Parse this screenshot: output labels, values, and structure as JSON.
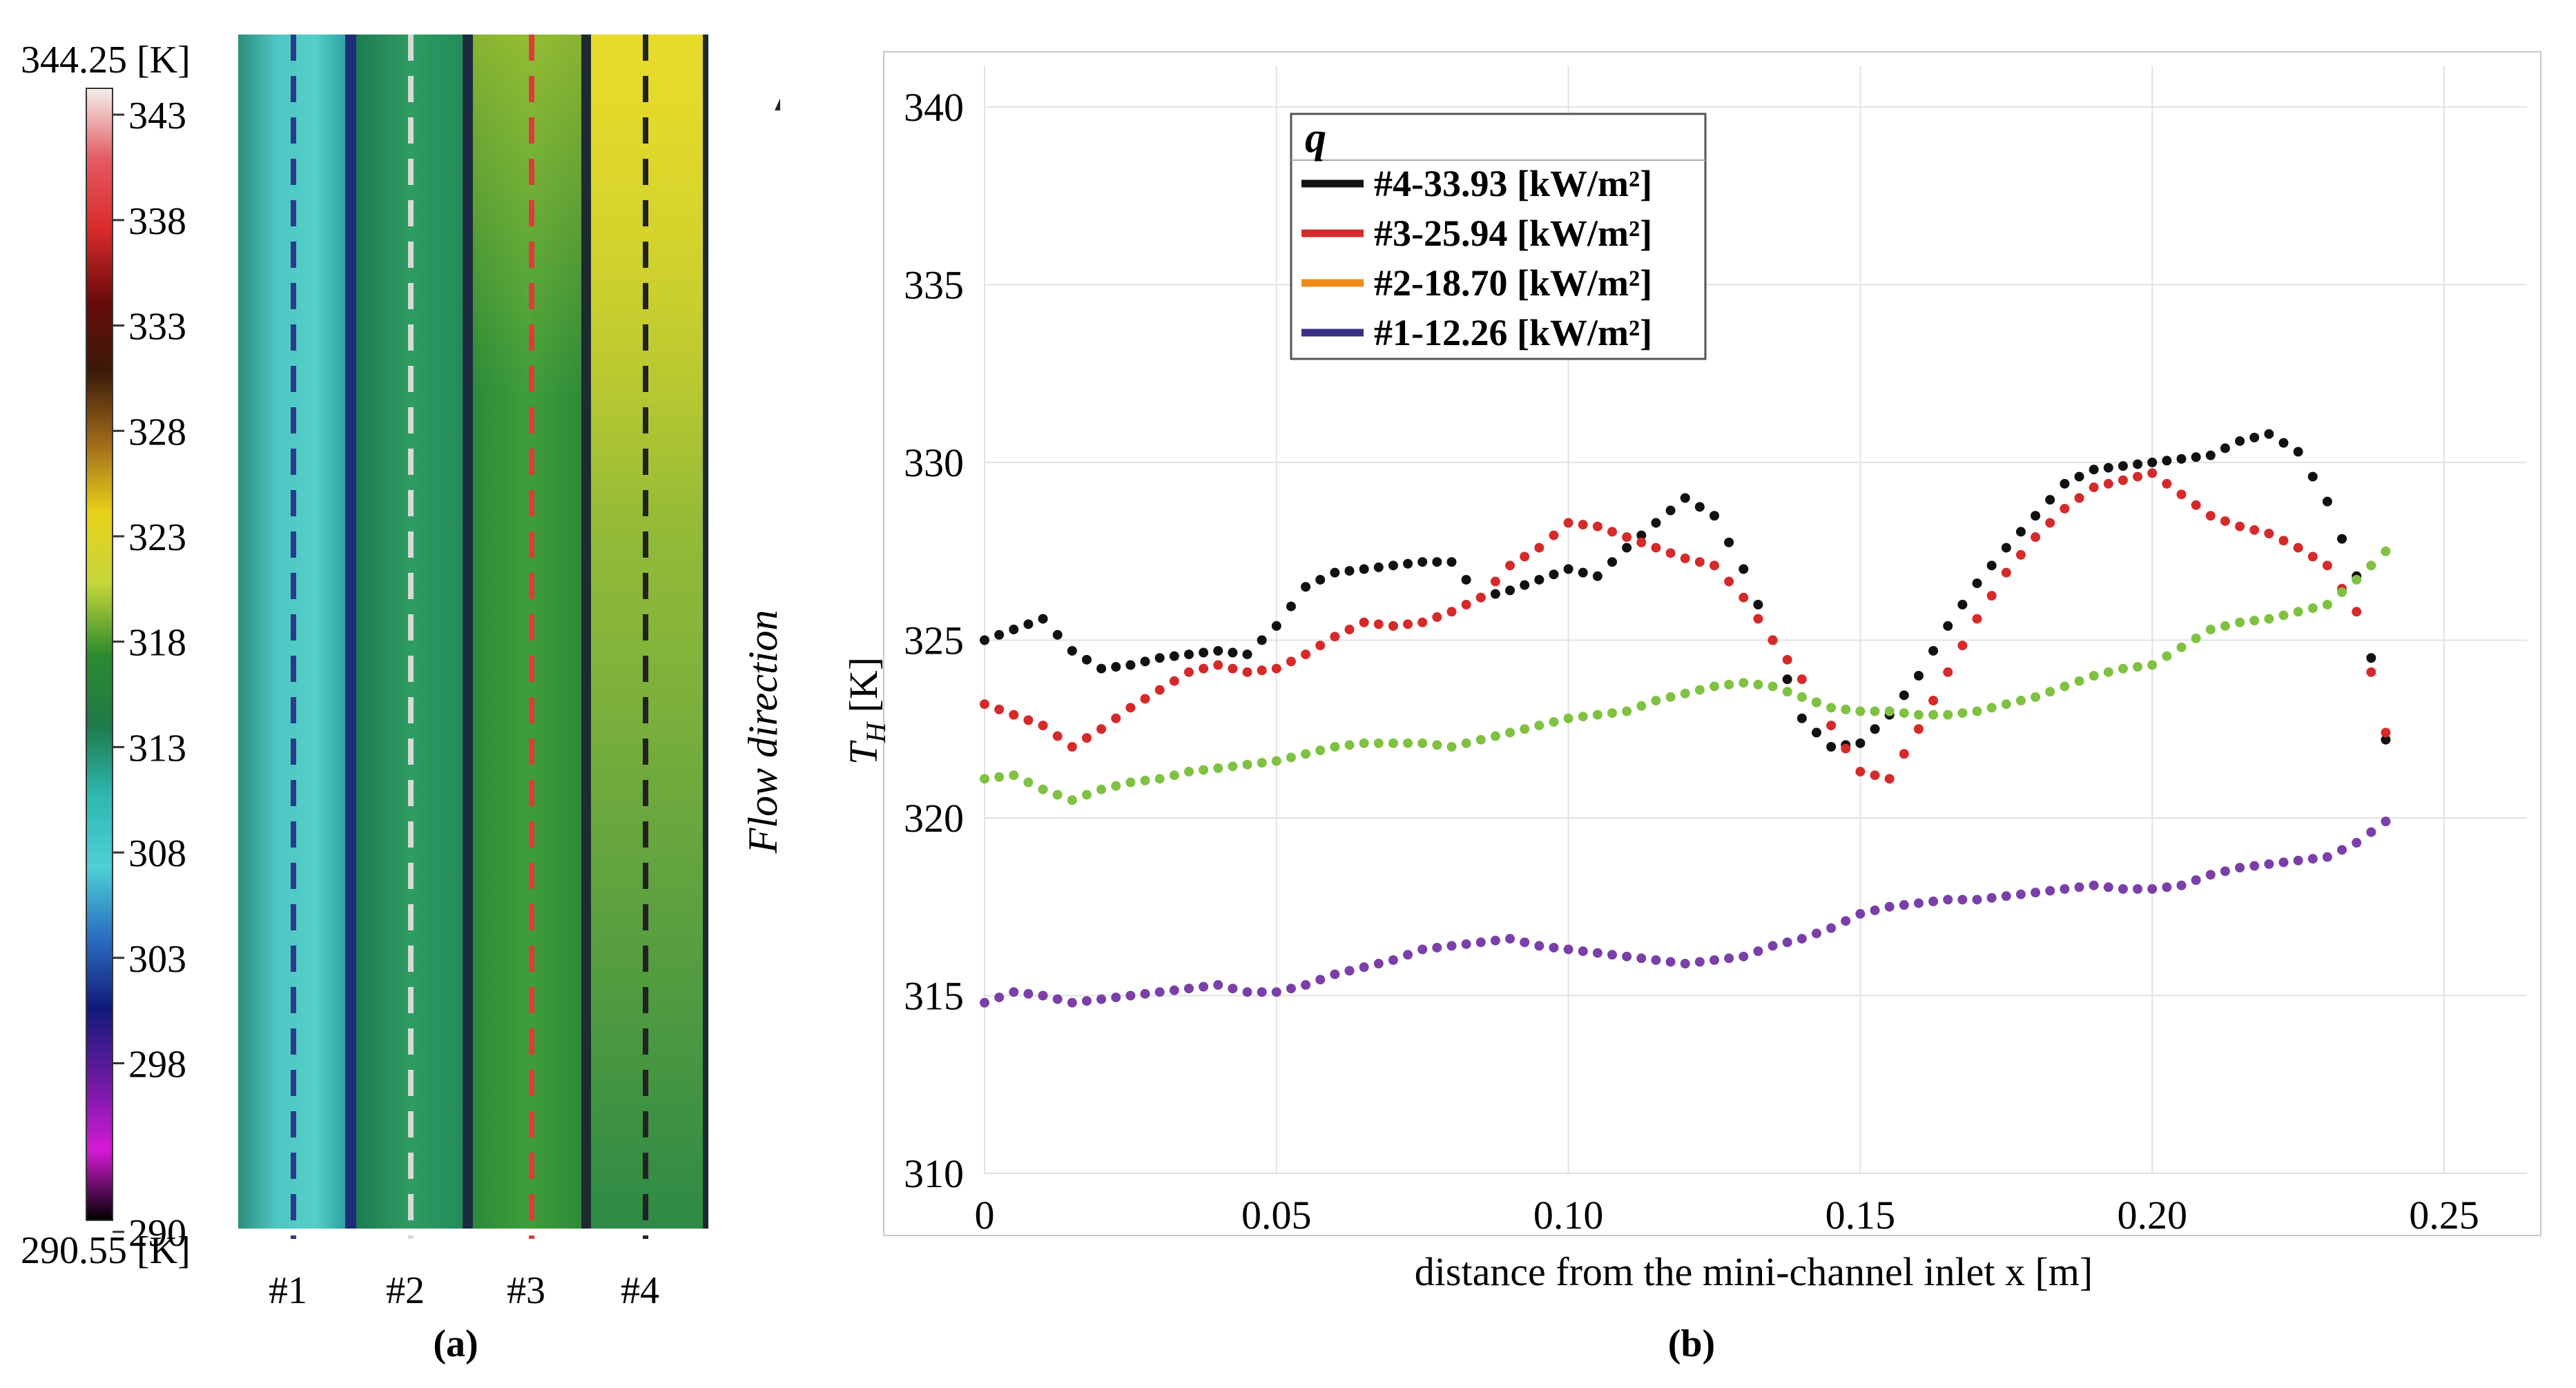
{
  "panel_a": {
    "label": "(a)",
    "colorbar": {
      "max_label": "344.25 [K]",
      "min_label": "290.55 [K]",
      "max": 344.25,
      "min": 290.55,
      "ticks": [
        {
          "value": 343,
          "label": "343"
        },
        {
          "value": 338,
          "label": "338"
        },
        {
          "value": 333,
          "label": "333"
        },
        {
          "value": 328,
          "label": "328"
        },
        {
          "value": 323,
          "label": "323"
        },
        {
          "value": 318,
          "label": "318"
        },
        {
          "value": 313,
          "label": "313"
        },
        {
          "value": 308,
          "label": "308"
        },
        {
          "value": 303,
          "label": "303"
        },
        {
          "value": 298,
          "label": "298"
        },
        {
          "value": 290,
          "label": "290"
        }
      ],
      "stops": [
        "#f4f0ec",
        "#e45a62",
        "#d92b2b",
        "#6a0b0b",
        "#3a1a0a",
        "#a06a1a",
        "#e8d21a",
        "#c4d63a",
        "#2e8a2e",
        "#1f7a4a",
        "#2fb7b0",
        "#4dd0d5",
        "#2a6fc0",
        "#121a7a",
        "#6a1aa0",
        "#d41ad4",
        "#000000"
      ]
    },
    "channels": [
      "#1",
      "#2",
      "#3",
      "#4"
    ],
    "channel_colors": [
      "#2b3a8a",
      "#d9d9d9",
      "#e03a3a",
      "#222222"
    ],
    "arrow_label": "Flow direction"
  },
  "chart_data": {
    "label": "(b)",
    "type": "scatter",
    "xlabel": "distance from the mini-channel inlet x [m]",
    "ylabel": "T_H [K]",
    "xlim": [
      0,
      0.25
    ],
    "ylim": [
      310,
      340
    ],
    "xticks": [
      0,
      0.05,
      0.1,
      0.15,
      0.2,
      0.25
    ],
    "xtick_labels": [
      "0",
      "0.05",
      "0.10",
      "0.15",
      "0.20",
      "0.25"
    ],
    "yticks": [
      310,
      315,
      320,
      325,
      330,
      335,
      340
    ],
    "ytick_labels": [
      "310",
      "315",
      "320",
      "325",
      "330",
      "335",
      "340"
    ],
    "grid": true,
    "legend": {
      "title": "q",
      "placement": "top-left",
      "entries": [
        {
          "text": "#4-33.93 [kW/m²]",
          "color": "#111111"
        },
        {
          "text": "#3-25.94 [kW/m²]",
          "color": "#d62a2a"
        },
        {
          "text": "#2-18.70 [kW/m²]",
          "color": "#f08a1c"
        },
        {
          "text": "#1-12.26 [kW/m²]",
          "color": "#3a2f86"
        }
      ]
    },
    "series": [
      {
        "color": "#111111",
        "points": [
          [
            0.0,
            325.0
          ],
          [
            0.005,
            325.3
          ],
          [
            0.01,
            325.6
          ],
          [
            0.015,
            324.7
          ],
          [
            0.02,
            324.2
          ],
          [
            0.025,
            324.3
          ],
          [
            0.03,
            324.5
          ],
          [
            0.035,
            324.6
          ],
          [
            0.04,
            324.7
          ],
          [
            0.045,
            324.6
          ],
          [
            0.05,
            325.4
          ],
          [
            0.055,
            326.5
          ],
          [
            0.06,
            326.9
          ],
          [
            0.065,
            327.0
          ],
          [
            0.07,
            327.1
          ],
          [
            0.075,
            327.2
          ],
          [
            0.08,
            327.2
          ],
          [
            0.085,
            326.2
          ],
          [
            0.09,
            326.4
          ],
          [
            0.095,
            326.7
          ],
          [
            0.1,
            327.0
          ],
          [
            0.105,
            326.8
          ],
          [
            0.11,
            327.6
          ],
          [
            0.115,
            328.3
          ],
          [
            0.12,
            329.0
          ],
          [
            0.125,
            328.5
          ],
          [
            0.13,
            327.0
          ],
          [
            0.135,
            325.0
          ],
          [
            0.14,
            322.8
          ],
          [
            0.145,
            322.0
          ],
          [
            0.15,
            322.1
          ],
          [
            0.155,
            322.9
          ],
          [
            0.16,
            324.0
          ],
          [
            0.165,
            325.4
          ],
          [
            0.17,
            326.6
          ],
          [
            0.175,
            327.6
          ],
          [
            0.18,
            328.5
          ],
          [
            0.185,
            329.4
          ],
          [
            0.19,
            329.8
          ],
          [
            0.195,
            329.9
          ],
          [
            0.2,
            330.0
          ],
          [
            0.205,
            330.1
          ],
          [
            0.21,
            330.2
          ],
          [
            0.215,
            330.6
          ],
          [
            0.22,
            330.8
          ],
          [
            0.225,
            330.3
          ],
          [
            0.23,
            328.9
          ],
          [
            0.235,
            326.8
          ],
          [
            0.24,
            322.2
          ]
        ]
      },
      {
        "color": "#d62a2a",
        "points": [
          [
            0.0,
            323.2
          ],
          [
            0.005,
            322.9
          ],
          [
            0.01,
            322.6
          ],
          [
            0.015,
            322.0
          ],
          [
            0.02,
            322.5
          ],
          [
            0.025,
            323.1
          ],
          [
            0.03,
            323.6
          ],
          [
            0.035,
            324.1
          ],
          [
            0.04,
            324.3
          ],
          [
            0.045,
            324.1
          ],
          [
            0.05,
            324.2
          ],
          [
            0.055,
            324.6
          ],
          [
            0.06,
            325.1
          ],
          [
            0.065,
            325.5
          ],
          [
            0.07,
            325.4
          ],
          [
            0.075,
            325.5
          ],
          [
            0.08,
            325.8
          ],
          [
            0.085,
            326.2
          ],
          [
            0.09,
            327.1
          ],
          [
            0.095,
            327.6
          ],
          [
            0.1,
            328.3
          ],
          [
            0.105,
            328.2
          ],
          [
            0.11,
            327.9
          ],
          [
            0.115,
            327.6
          ],
          [
            0.12,
            327.3
          ],
          [
            0.125,
            327.1
          ],
          [
            0.13,
            326.2
          ],
          [
            0.135,
            325.0
          ],
          [
            0.14,
            323.9
          ],
          [
            0.145,
            322.6
          ],
          [
            0.15,
            321.3
          ],
          [
            0.155,
            321.1
          ],
          [
            0.16,
            322.5
          ],
          [
            0.165,
            324.1
          ],
          [
            0.17,
            325.6
          ],
          [
            0.175,
            326.9
          ],
          [
            0.18,
            327.9
          ],
          [
            0.185,
            328.7
          ],
          [
            0.19,
            329.3
          ],
          [
            0.195,
            329.5
          ],
          [
            0.2,
            329.7
          ],
          [
            0.205,
            329.1
          ],
          [
            0.21,
            328.5
          ],
          [
            0.215,
            328.2
          ],
          [
            0.22,
            328.0
          ],
          [
            0.225,
            327.6
          ],
          [
            0.23,
            327.1
          ],
          [
            0.235,
            325.8
          ],
          [
            0.24,
            322.4
          ]
        ]
      },
      {
        "color": "#7fc241",
        "points": [
          [
            0.0,
            321.1
          ],
          [
            0.005,
            321.2
          ],
          [
            0.01,
            320.8
          ],
          [
            0.015,
            320.5
          ],
          [
            0.02,
            320.8
          ],
          [
            0.025,
            321.0
          ],
          [
            0.03,
            321.1
          ],
          [
            0.035,
            321.3
          ],
          [
            0.04,
            321.4
          ],
          [
            0.045,
            321.5
          ],
          [
            0.05,
            321.6
          ],
          [
            0.055,
            321.8
          ],
          [
            0.06,
            322.0
          ],
          [
            0.065,
            322.1
          ],
          [
            0.07,
            322.1
          ],
          [
            0.075,
            322.1
          ],
          [
            0.08,
            322.0
          ],
          [
            0.085,
            322.2
          ],
          [
            0.09,
            322.4
          ],
          [
            0.095,
            322.6
          ],
          [
            0.1,
            322.8
          ],
          [
            0.105,
            322.9
          ],
          [
            0.11,
            323.0
          ],
          [
            0.115,
            323.3
          ],
          [
            0.12,
            323.5
          ],
          [
            0.125,
            323.7
          ],
          [
            0.13,
            323.8
          ],
          [
            0.135,
            323.7
          ],
          [
            0.14,
            323.4
          ],
          [
            0.145,
            323.1
          ],
          [
            0.15,
            323.0
          ],
          [
            0.155,
            323.0
          ],
          [
            0.16,
            322.9
          ],
          [
            0.165,
            322.9
          ],
          [
            0.17,
            323.0
          ],
          [
            0.175,
            323.2
          ],
          [
            0.18,
            323.4
          ],
          [
            0.185,
            323.7
          ],
          [
            0.19,
            324.0
          ],
          [
            0.195,
            324.2
          ],
          [
            0.2,
            324.3
          ],
          [
            0.205,
            324.8
          ],
          [
            0.21,
            325.3
          ],
          [
            0.215,
            325.5
          ],
          [
            0.22,
            325.6
          ],
          [
            0.225,
            325.8
          ],
          [
            0.23,
            326.0
          ],
          [
            0.235,
            326.7
          ],
          [
            0.24,
            327.5
          ]
        ]
      },
      {
        "color": "#7a3fa8",
        "points": [
          [
            0.0,
            314.8
          ],
          [
            0.005,
            315.1
          ],
          [
            0.01,
            315.0
          ],
          [
            0.015,
            314.8
          ],
          [
            0.02,
            314.9
          ],
          [
            0.025,
            315.0
          ],
          [
            0.03,
            315.1
          ],
          [
            0.035,
            315.2
          ],
          [
            0.04,
            315.3
          ],
          [
            0.045,
            315.1
          ],
          [
            0.05,
            315.1
          ],
          [
            0.055,
            315.3
          ],
          [
            0.06,
            315.6
          ],
          [
            0.065,
            315.8
          ],
          [
            0.07,
            316.0
          ],
          [
            0.075,
            316.3
          ],
          [
            0.08,
            316.4
          ],
          [
            0.085,
            316.5
          ],
          [
            0.09,
            316.6
          ],
          [
            0.095,
            316.4
          ],
          [
            0.1,
            316.3
          ],
          [
            0.105,
            316.2
          ],
          [
            0.11,
            316.1
          ],
          [
            0.115,
            316.0
          ],
          [
            0.12,
            315.9
          ],
          [
            0.125,
            316.0
          ],
          [
            0.13,
            316.1
          ],
          [
            0.135,
            316.4
          ],
          [
            0.14,
            316.6
          ],
          [
            0.145,
            316.9
          ],
          [
            0.15,
            317.3
          ],
          [
            0.155,
            317.5
          ],
          [
            0.16,
            317.6
          ],
          [
            0.165,
            317.7
          ],
          [
            0.17,
            317.7
          ],
          [
            0.175,
            317.8
          ],
          [
            0.18,
            317.9
          ],
          [
            0.185,
            318.0
          ],
          [
            0.19,
            318.1
          ],
          [
            0.195,
            318.0
          ],
          [
            0.2,
            318.0
          ],
          [
            0.205,
            318.1
          ],
          [
            0.21,
            318.4
          ],
          [
            0.215,
            318.6
          ],
          [
            0.22,
            318.7
          ],
          [
            0.225,
            318.8
          ],
          [
            0.23,
            318.9
          ],
          [
            0.235,
            319.3
          ],
          [
            0.24,
            319.9
          ]
        ]
      }
    ]
  }
}
